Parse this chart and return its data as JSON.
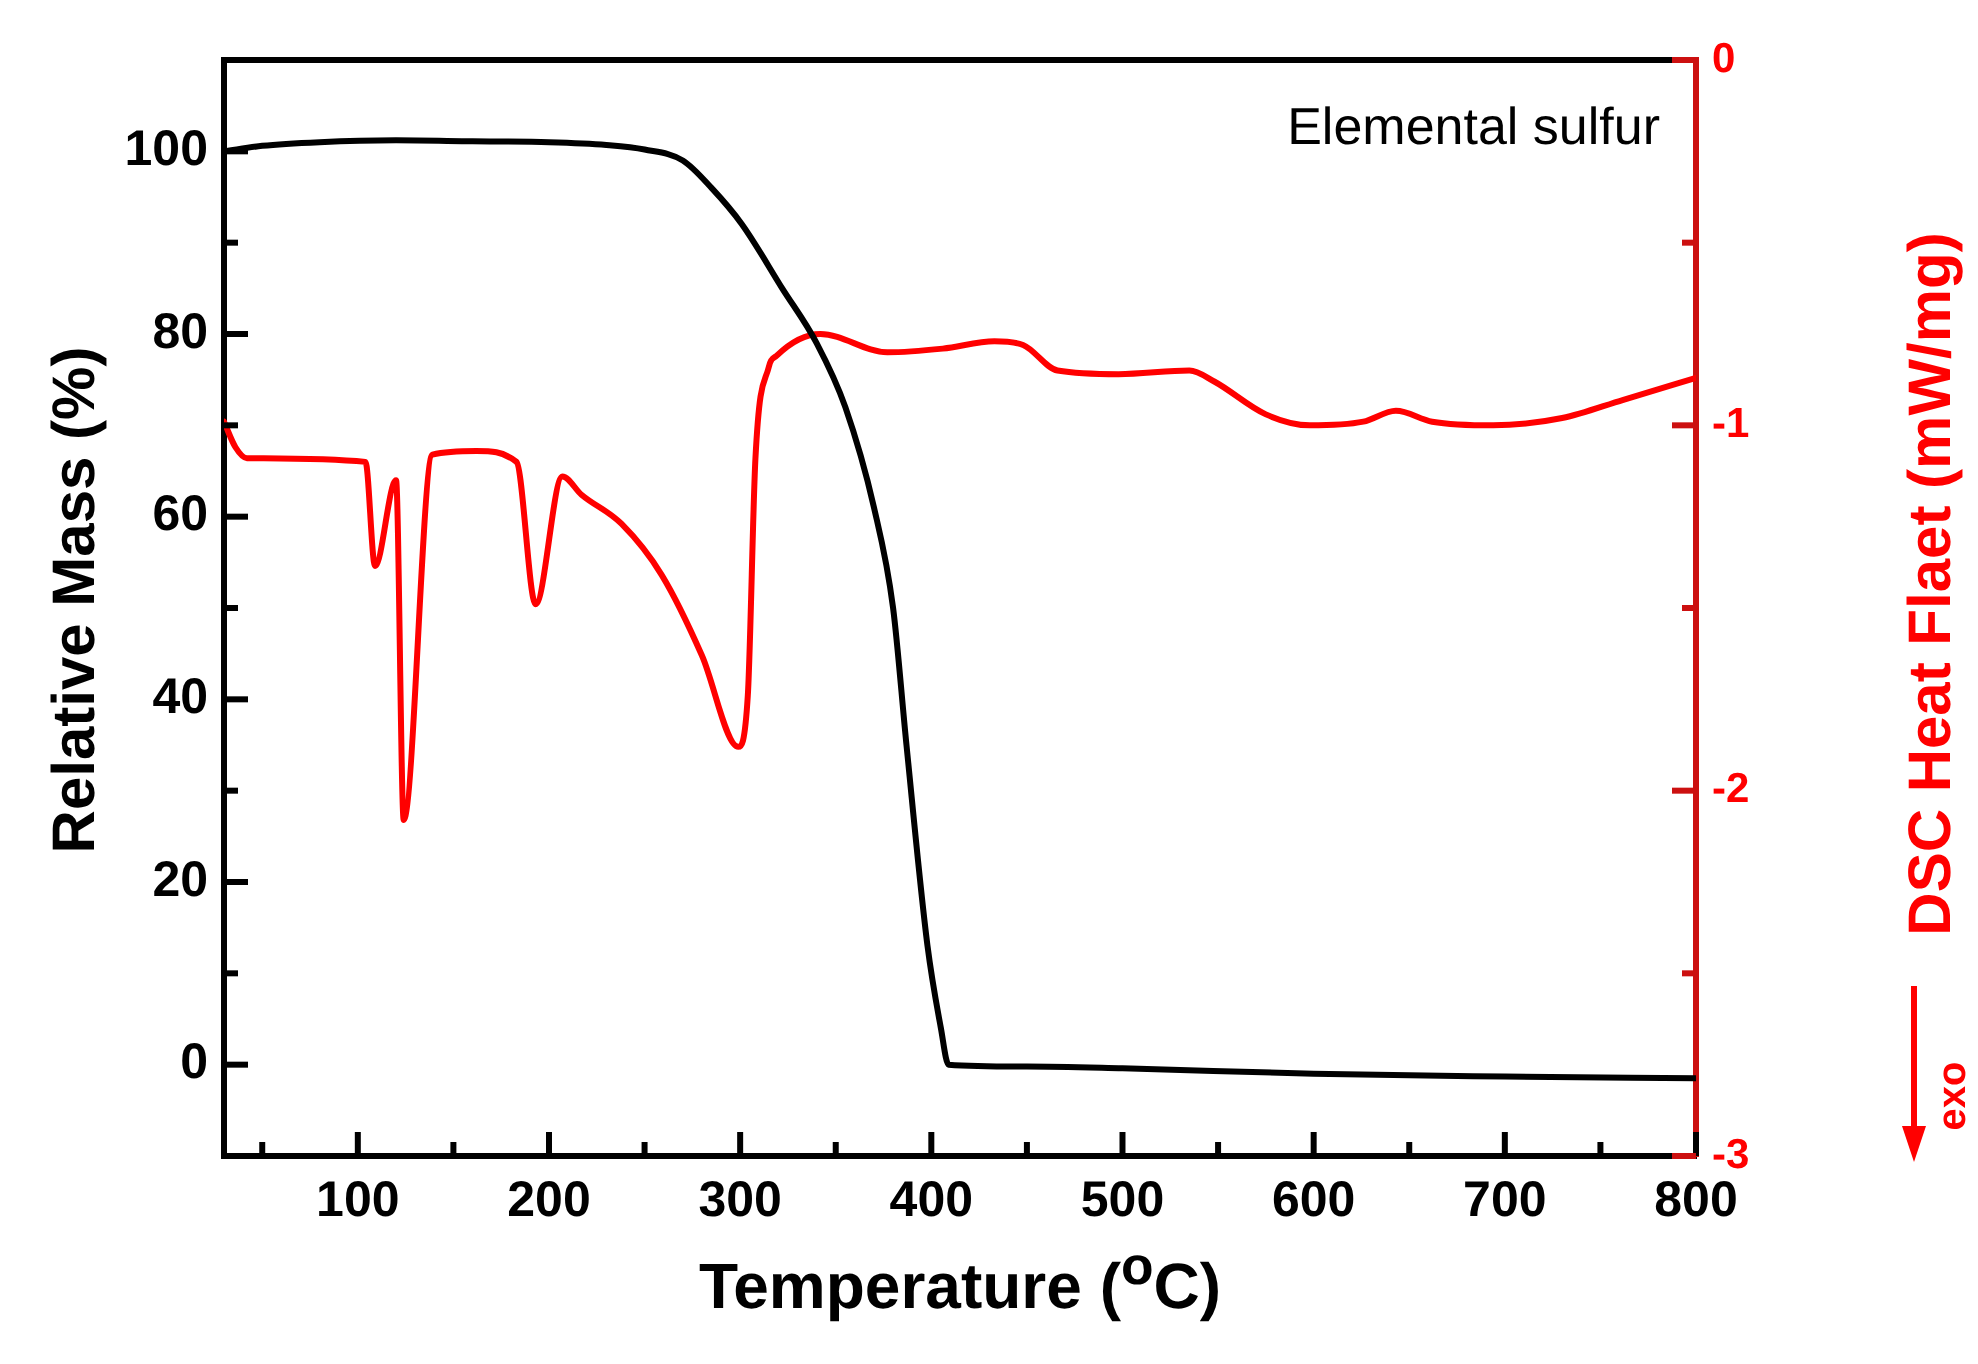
{
  "chart_data": {
    "type": "line",
    "xlabel": "Temperature ($^{o}$C)",
    "ylabel": "Relative Mass (%)",
    "y2label": "DSC Heat Flaet (mW/mg)",
    "annotations": [
      "Elemental sulfur",
      "exo"
    ],
    "series": [
      {
        "color": "#000000",
        "x": [
          30,
          50,
          80,
          120,
          160,
          200,
          230,
          250,
          270,
          285,
          301,
          322,
          340,
          355,
          370,
          380,
          387,
          398,
          405,
          409,
          450,
          500,
          600,
          700,
          800
        ],
        "values": [
          100,
          100.6,
          101,
          101.2,
          101.1,
          101,
          100.7,
          100.2,
          99,
          96,
          92,
          85,
          79,
          72,
          61,
          50,
          35,
          13,
          4,
          0,
          -0.2,
          -0.4,
          -1,
          -1.3,
          -1.5
        ]
      },
      {
        "color": "#ff0000",
        "axis": "y2",
        "x": [
          30,
          36,
          42,
          104,
          109,
          120,
          124,
          139,
          162,
          183,
          193,
          207,
          217,
          238,
          259,
          280,
          299,
          304,
          308,
          315,
          319,
          342,
          377,
          406,
          433,
          448,
          466,
          498,
          535,
          548,
          575,
          598,
          626,
          643,
          662,
          694,
          730,
          762,
          800
        ],
        "values": [
          -0.99,
          -1.06,
          -1.09,
          -1.1,
          -1.385,
          -1.15,
          -2.08,
          -1.08,
          -1.07,
          -1.1,
          -1.49,
          -1.14,
          -1.19,
          -1.27,
          -1.41,
          -1.63,
          -1.88,
          -1.74,
          -1.09,
          -0.84,
          -0.81,
          -0.75,
          -0.8,
          -0.79,
          -0.77,
          -0.78,
          -0.85,
          -0.86,
          -0.85,
          -0.88,
          -0.97,
          -1.0,
          -0.99,
          -0.96,
          -0.99,
          -1.0,
          -0.98,
          -0.93,
          -0.87
        ]
      }
    ],
    "xlim": [
      30,
      800
    ],
    "xticks": [
      {
        "value": 50,
        "label": null
      },
      100,
      {
        "value": 150,
        "label": null
      },
      200,
      {
        "value": 250,
        "label": null
      },
      300,
      {
        "value": 350,
        "label": null
      },
      400,
      {
        "value": 450,
        "label": null
      },
      500,
      {
        "value": 550,
        "label": null
      },
      600,
      {
        "value": 650,
        "label": null
      },
      700,
      {
        "value": 750,
        "label": null
      },
      800
    ],
    "ylim": [
      -10,
      110
    ],
    "yticks": [
      0,
      {
        "value": 10,
        "label": null
      },
      20,
      {
        "value": 30,
        "label": null
      },
      40,
      {
        "value": 50,
        "label": null
      },
      60,
      {
        "value": 70,
        "label": null
      },
      80,
      {
        "value": 90,
        "label": null
      },
      100
    ],
    "y2lim": [
      -3,
      0
    ],
    "y2ticks": [
      -3,
      {
        "value": -2.5,
        "label": null
      },
      -2,
      {
        "value": -1.5,
        "label": null
      },
      -1,
      {
        "value": -0.5,
        "label": null
      },
      0
    ],
    "grid": false,
    "legend": false,
    "marker": "none",
    "line_style": "solid"
  }
}
